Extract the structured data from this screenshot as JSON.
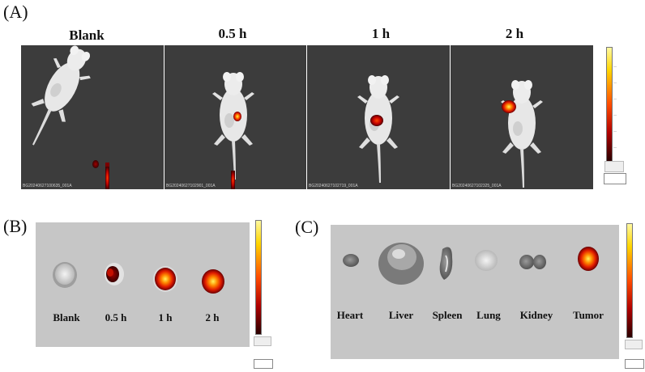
{
  "panel_a": {
    "label": "(A)",
    "times": [
      "Blank",
      "0.5 h",
      "1 h",
      "2 h"
    ],
    "image_ids": [
      "BG20240627100635_001A",
      "BG20240627102901_001A",
      "BG20240627102719_001A",
      "BG20240627102325_001A"
    ]
  },
  "panel_b": {
    "label": "(B)",
    "times": [
      "Blank",
      "0.5 h",
      "1 h",
      "2 h"
    ]
  },
  "panel_c": {
    "label": "(C)",
    "organs": [
      "Heart",
      "Liver",
      "Spleen",
      "Lung",
      "Kidney",
      "Tumor"
    ]
  },
  "colors": {
    "background_dark": "#3c3c3c",
    "background_light": "#c6c6c6",
    "signal_high": "#ffe600",
    "signal_mid": "#e8230a",
    "signal_low": "#5a0000"
  }
}
